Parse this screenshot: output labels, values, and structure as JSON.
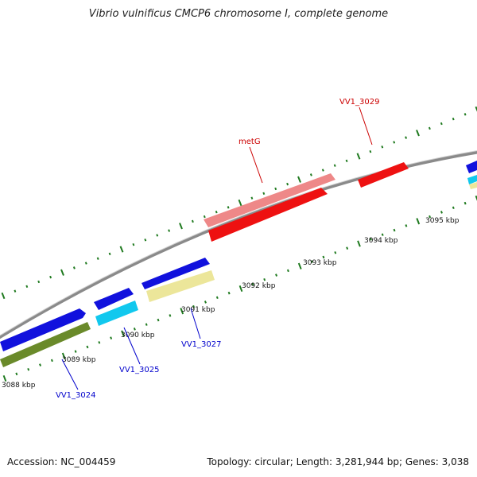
{
  "title": "Vibrio vulnificus CMCP6 chromosome I, complete genome",
  "footer": {
    "accession": "Accession: NC_004459",
    "summary": "Topology: circular; Length: 3,281,944 bp; Genes: 3,038"
  },
  "colors": {
    "backbone": "#8a8a8a",
    "tick": "#1f7a1f",
    "blue": "#1111dd",
    "cyan": "#11c8ee",
    "olive": "#6a8a2a",
    "khaki": "#ece69a",
    "red": "#ee1111",
    "pink": "#ee8888",
    "label_blue": "#0000cc",
    "label_red": "#cc0000"
  },
  "kbp_labels": [
    "3088 kbp",
    "3089 kbp",
    "3090 kbp",
    "3091 kbp",
    "3092 kbp",
    "3093 kbp",
    "3094 kbp",
    "3095 kbp"
  ],
  "gene_labels": {
    "vv1_3024": "VV1_3024",
    "vv1_3025": "VV1_3025",
    "vv1_3027": "VV1_3027",
    "metg": "metG",
    "vv1_3029": "VV1_3029"
  }
}
